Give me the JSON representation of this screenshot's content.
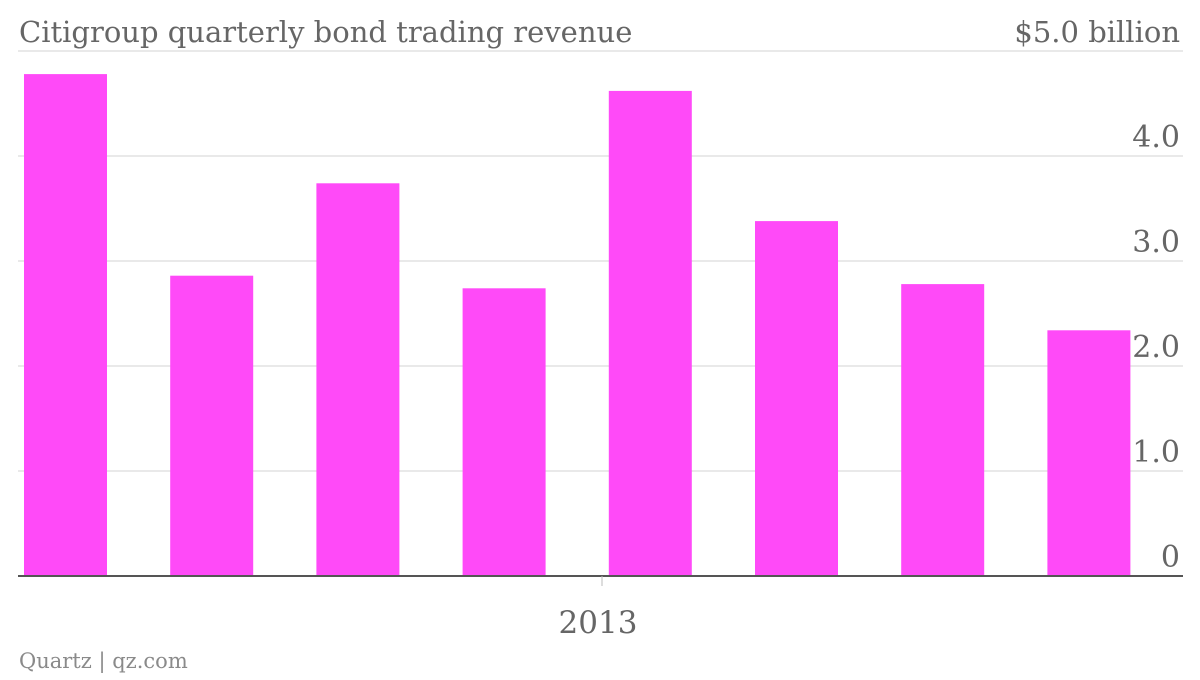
{
  "chart_data": {
    "type": "bar",
    "title": "Citigroup quarterly bond trading revenue",
    "unit_label": "$5.0 billion",
    "categories": [
      "",
      "",
      "",
      "",
      "",
      "",
      "",
      ""
    ],
    "values": [
      4.78,
      2.86,
      3.74,
      2.74,
      4.62,
      3.38,
      2.78,
      2.34
    ],
    "ylim": [
      0,
      5.0
    ],
    "y_ticks": [
      {
        "value": 0,
        "label": "0"
      },
      {
        "value": 1.0,
        "label": "1.0"
      },
      {
        "value": 2.0,
        "label": "2.0"
      },
      {
        "value": 3.0,
        "label": "3.0"
      },
      {
        "value": 4.0,
        "label": "4.0"
      },
      {
        "value": 5.0,
        "label": "$5.0 billion"
      }
    ],
    "x_label": "2013",
    "grid": true,
    "bar_color": "#ff4af8",
    "source": "Quartz | qz.com"
  }
}
